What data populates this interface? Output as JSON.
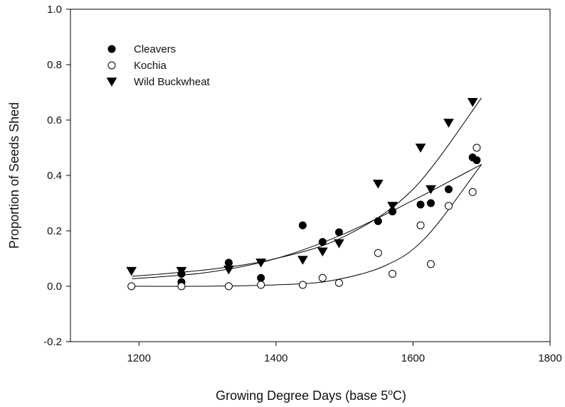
{
  "chart_data": {
    "type": "scatter",
    "title": "",
    "xlabel_parts": {
      "text": "Growing Degree Days (base 5",
      "sup": "o",
      "tail": "C)"
    },
    "ylabel": "Proportion of Seeds Shed",
    "xlim": [
      1100,
      1800
    ],
    "ylim": [
      -0.2,
      1.0
    ],
    "xticks": [
      1200,
      1400,
      1600,
      1800
    ],
    "yticks": [
      -0.2,
      0.0,
      0.2,
      0.4,
      0.6,
      0.8,
      1.0
    ],
    "grid": false,
    "legend_position": "top-left",
    "series": [
      {
        "name": "Cleavers",
        "marker": "filled-circle",
        "x": [
          1262,
          1262,
          1331,
          1378,
          1439,
          1468,
          1492,
          1549,
          1570,
          1611,
          1626,
          1652,
          1687,
          1693
        ],
        "y": [
          0.045,
          0.015,
          0.085,
          0.03,
          0.22,
          0.16,
          0.195,
          0.235,
          0.27,
          0.295,
          0.3,
          0.35,
          0.465,
          0.455
        ],
        "fit": [
          [
            1190,
            0.027
          ],
          [
            1300,
            0.05
          ],
          [
            1400,
            0.1
          ],
          [
            1500,
            0.19
          ],
          [
            1600,
            0.31
          ],
          [
            1700,
            0.44
          ]
        ]
      },
      {
        "name": "Kochia",
        "marker": "open-circle",
        "x": [
          1189,
          1262,
          1331,
          1378,
          1439,
          1468,
          1492,
          1549,
          1570,
          1611,
          1626,
          1652,
          1687,
          1693
        ],
        "y": [
          0.0,
          0.0,
          0.0,
          0.005,
          0.005,
          0.03,
          0.012,
          0.12,
          0.045,
          0.22,
          0.08,
          0.29,
          0.34,
          0.5
        ],
        "fit": [
          [
            1190,
            0.0
          ],
          [
            1300,
            0.0
          ],
          [
            1400,
            0.005
          ],
          [
            1480,
            0.02
          ],
          [
            1560,
            0.075
          ],
          [
            1620,
            0.18
          ],
          [
            1700,
            0.44
          ]
        ]
      },
      {
        "name": "Wild Buckwheat",
        "marker": "filled-triangle-down",
        "x": [
          1189,
          1262,
          1331,
          1378,
          1439,
          1468,
          1492,
          1549,
          1570,
          1611,
          1626,
          1652,
          1687
        ],
        "y": [
          0.055,
          0.055,
          0.06,
          0.085,
          0.095,
          0.125,
          0.155,
          0.37,
          0.29,
          0.5,
          0.35,
          0.59,
          0.665
        ],
        "fit": [
          [
            1190,
            0.036
          ],
          [
            1300,
            0.06
          ],
          [
            1400,
            0.1
          ],
          [
            1500,
            0.18
          ],
          [
            1600,
            0.35
          ],
          [
            1700,
            0.68
          ]
        ]
      }
    ]
  }
}
